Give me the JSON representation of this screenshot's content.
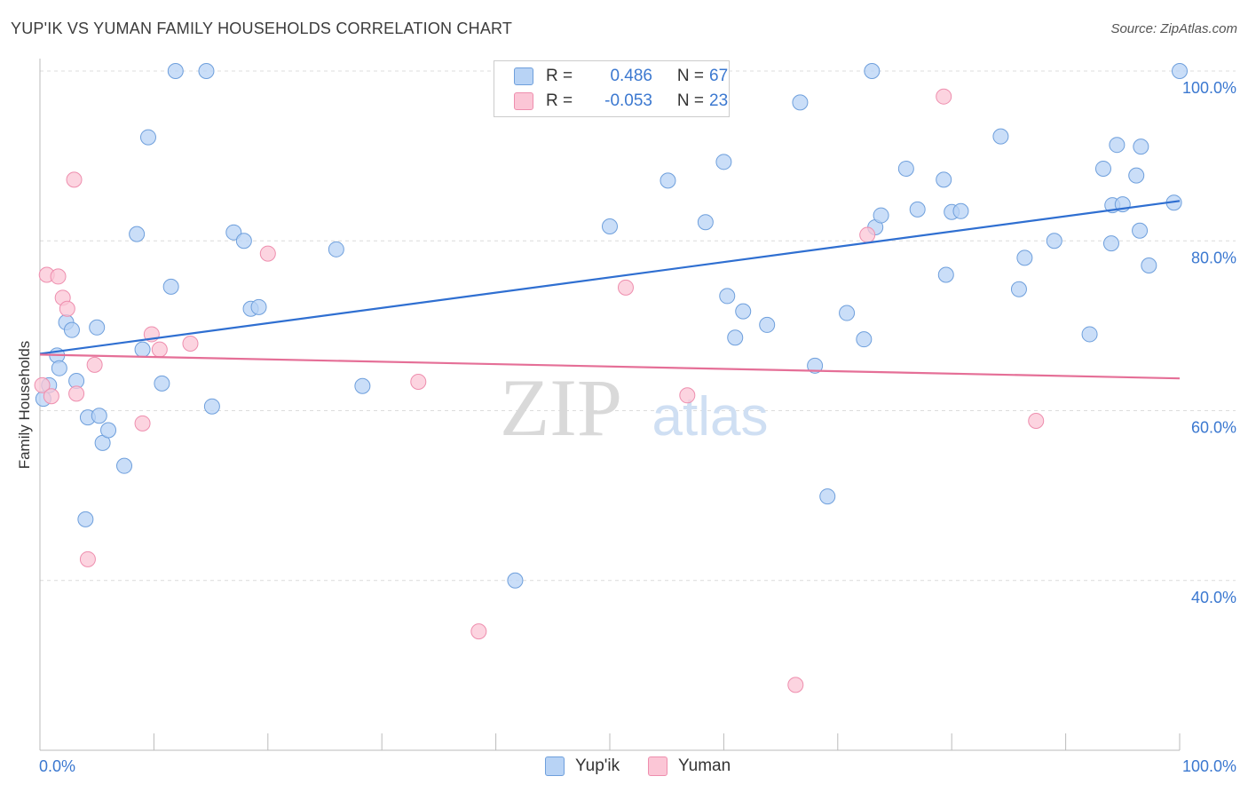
{
  "header": {
    "title": "YUP'IK VS YUMAN FAMILY HOUSEHOLDS CORRELATION CHART",
    "source": "Source: ZipAtlas.com"
  },
  "legend": {
    "r_label": "R =",
    "n_label": "N =",
    "series": [
      {
        "name": "Yup'ik",
        "r": "0.486",
        "n": "67"
      },
      {
        "name": "Yuman",
        "r": "-0.053",
        "n": "23"
      }
    ]
  },
  "watermark": {
    "zip": "ZIP",
    "atlas": "atlas"
  },
  "colors": {
    "yupik_fill": "#b8d3f5",
    "yupik_stroke": "#6e9fdc",
    "yupik_line": "#2f6fd1",
    "yuman_fill": "#fbc6d6",
    "yuman_stroke": "#ee8eae",
    "yuman_line": "#e56f97",
    "tick_text": "#3b78d0"
  },
  "chart_data": {
    "type": "scatter",
    "title": "YUP'IK VS YUMAN FAMILY HOUSEHOLDS CORRELATION CHART",
    "xlabel": "",
    "ylabel": "Family Households",
    "xlim": [
      0,
      100
    ],
    "ylim": [
      20,
      100
    ],
    "x_tick_labels": [
      "0.0%",
      "100.0%"
    ],
    "y_ticks": [
      100,
      80,
      60,
      40
    ],
    "y_tick_labels": [
      "100.0%",
      "80.0%",
      "60.0%",
      "40.0%"
    ],
    "grid": true,
    "series": [
      {
        "name": "Yup'ik",
        "points": [
          [
            0.3,
            61.4
          ],
          [
            0.8,
            63.0
          ],
          [
            1.5,
            66.5
          ],
          [
            1.7,
            65.0
          ],
          [
            2.3,
            70.4
          ],
          [
            2.8,
            69.5
          ],
          [
            3.2,
            63.5
          ],
          [
            4.2,
            59.2
          ],
          [
            5.0,
            69.8
          ],
          [
            5.2,
            59.4
          ],
          [
            5.5,
            56.2
          ],
          [
            6.0,
            57.7
          ],
          [
            4.0,
            47.2
          ],
          [
            7.4,
            53.5
          ],
          [
            8.5,
            80.8
          ],
          [
            9.0,
            67.2
          ],
          [
            9.5,
            92.2
          ],
          [
            10.7,
            63.2
          ],
          [
            11.5,
            74.6
          ],
          [
            11.9,
            100.0
          ],
          [
            14.6,
            100.0
          ],
          [
            15.1,
            60.5
          ],
          [
            17.0,
            81.0
          ],
          [
            17.9,
            80.0
          ],
          [
            18.5,
            72.0
          ],
          [
            19.2,
            72.2
          ],
          [
            26.0,
            79.0
          ],
          [
            28.3,
            62.9
          ],
          [
            41.7,
            40.0
          ],
          [
            50.0,
            81.7
          ],
          [
            55.1,
            87.1
          ],
          [
            58.4,
            82.2
          ],
          [
            60.0,
            89.3
          ],
          [
            60.3,
            73.5
          ],
          [
            61.0,
            68.6
          ],
          [
            61.7,
            71.7
          ],
          [
            63.8,
            70.1
          ],
          [
            66.7,
            96.3
          ],
          [
            68.0,
            65.3
          ],
          [
            69.1,
            49.9
          ],
          [
            70.8,
            71.5
          ],
          [
            72.3,
            68.4
          ],
          [
            73.0,
            100.0
          ],
          [
            73.3,
            81.6
          ],
          [
            73.8,
            83.0
          ],
          [
            76.0,
            88.5
          ],
          [
            77.0,
            83.7
          ],
          [
            79.3,
            87.2
          ],
          [
            79.5,
            76.0
          ],
          [
            80.0,
            83.4
          ],
          [
            80.8,
            83.5
          ],
          [
            84.3,
            92.3
          ],
          [
            85.9,
            74.3
          ],
          [
            86.4,
            78.0
          ],
          [
            89.0,
            80.0
          ],
          [
            92.1,
            69.0
          ],
          [
            93.3,
            88.5
          ],
          [
            94.1,
            84.2
          ],
          [
            94.5,
            91.3
          ],
          [
            94.0,
            79.7
          ],
          [
            95.0,
            84.3
          ],
          [
            96.2,
            87.7
          ],
          [
            96.6,
            91.1
          ],
          [
            96.5,
            81.2
          ],
          [
            97.3,
            77.1
          ],
          [
            99.5,
            84.5
          ],
          [
            100.0,
            100.0
          ]
        ],
        "trend": {
          "start": [
            0,
            66.7
          ],
          "end": [
            100,
            84.7
          ]
        }
      },
      {
        "name": "Yuman",
        "points": [
          [
            0.2,
            63.0
          ],
          [
            0.6,
            76.0
          ],
          [
            1.0,
            61.7
          ],
          [
            1.6,
            75.8
          ],
          [
            2.0,
            73.3
          ],
          [
            2.4,
            72.0
          ],
          [
            3.0,
            87.2
          ],
          [
            3.2,
            62.0
          ],
          [
            4.2,
            42.5
          ],
          [
            4.8,
            65.4
          ],
          [
            9.0,
            58.5
          ],
          [
            9.8,
            69.0
          ],
          [
            10.5,
            67.2
          ],
          [
            13.2,
            67.9
          ],
          [
            20.0,
            78.5
          ],
          [
            33.2,
            63.4
          ],
          [
            38.5,
            34.0
          ],
          [
            51.4,
            74.5
          ],
          [
            56.8,
            61.8
          ],
          [
            66.3,
            27.7
          ],
          [
            72.6,
            80.7
          ],
          [
            79.3,
            97.0
          ],
          [
            87.4,
            58.8
          ]
        ],
        "trend": {
          "start": [
            0,
            66.6
          ],
          "end": [
            100,
            63.8
          ]
        }
      }
    ]
  }
}
